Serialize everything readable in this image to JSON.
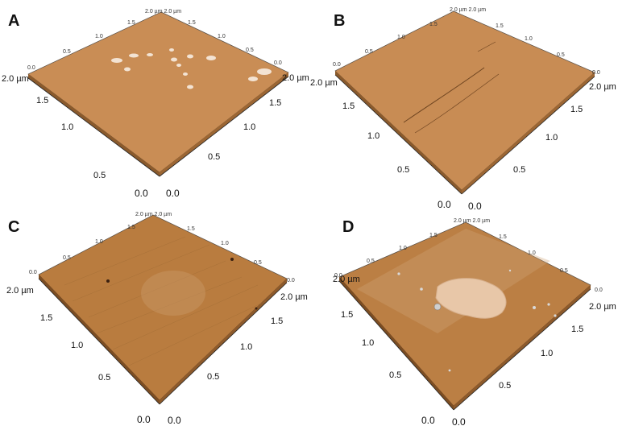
{
  "panels": [
    {
      "label": "A",
      "origin_left": "0.0",
      "origin_right": "0.0",
      "left_ticks": [
        "0.5",
        "1.0",
        "1.5",
        "2.0 µm"
      ],
      "right_ticks": [
        "0.5",
        "1.0",
        "1.5",
        "2.0 µm"
      ],
      "back_left_ticks": [
        "0.0",
        "0.5",
        "1.0",
        "1.5"
      ],
      "back_right_ticks": [
        "0.0",
        "0.5",
        "1.0",
        "1.5"
      ],
      "corner_label": "2.0 µm 2.0 µm"
    },
    {
      "label": "B",
      "origin_left": "0.0",
      "origin_right": "0.0",
      "left_ticks": [
        "0.5",
        "1.0",
        "1.5",
        "2.0 µm"
      ],
      "right_ticks": [
        "0.5",
        "1.0",
        "1.5",
        "2.0 µm"
      ],
      "back_left_ticks": [
        "0.0",
        "0.5",
        "1.0",
        "1.5"
      ],
      "back_right_ticks": [
        "0.0",
        "0.5",
        "1.0",
        "1.5"
      ],
      "corner_label": "2.0 µm 2.0 µm"
    },
    {
      "label": "C",
      "origin_left": "0.0",
      "origin_right": "0.0",
      "left_ticks": [
        "0.5",
        "1.0",
        "1.5",
        "2.0 µm"
      ],
      "right_ticks": [
        "0.5",
        "1.0",
        "1.5",
        "2.0 µm"
      ],
      "back_left_ticks": [
        "0.0",
        "0.5",
        "1.0",
        "1.5"
      ],
      "back_right_ticks": [
        "0.0",
        "0.5",
        "1.0",
        "1.5"
      ],
      "corner_label": "2.0 µm 2.0 µm"
    },
    {
      "label": "D",
      "origin_left": "0.0",
      "origin_right": "0.0",
      "left_ticks": [
        "0.5",
        "1.0",
        "1.5",
        "2.0 µm"
      ],
      "right_ticks": [
        "0.5",
        "1.0",
        "1.5",
        "2.0 µm"
      ],
      "back_left_ticks": [
        "0.0",
        "0.5",
        "1.0",
        "1.5"
      ],
      "back_right_ticks": [
        "0.0",
        "0.5",
        "1.0",
        "1.5"
      ],
      "corner_label": "2.0 µm 2.0 µm"
    }
  ],
  "colors": {
    "surface_A": "#c98d55",
    "surface_B": "#c88c54",
    "surface_C": "#b97c3f",
    "surface_D": "#bb7f44",
    "particle": "#f3e3d3",
    "patch_D": "#e8c7a8"
  }
}
